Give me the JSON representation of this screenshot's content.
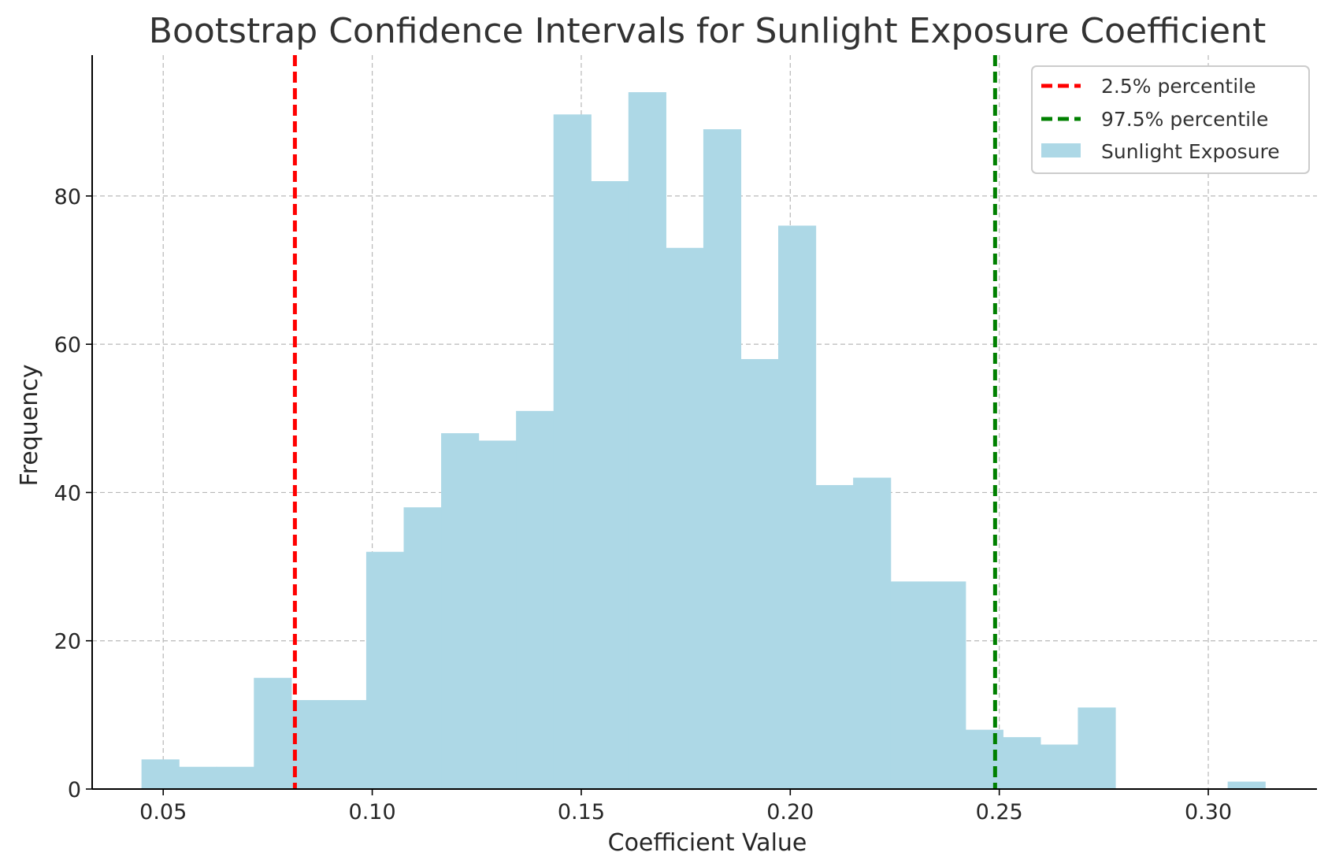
{
  "chart_data": {
    "type": "histogram",
    "title": "Bootstrap Confidence Intervals for Sunlight Exposure Coefficient",
    "xlabel": "Coefficient Value",
    "ylabel": "Frequency",
    "xlim": [
      0.033,
      0.326
    ],
    "ylim": [
      0,
      99
    ],
    "xticks": [
      0.05,
      0.1,
      0.15,
      0.2,
      0.25,
      0.3
    ],
    "xtick_labels": [
      "0.05",
      "0.10",
      "0.15",
      "0.20",
      "0.25",
      "0.30"
    ],
    "yticks": [
      0,
      20,
      40,
      60,
      80
    ],
    "ytick_labels": [
      "0",
      "20",
      "40",
      "60",
      "80"
    ],
    "grid": true,
    "legend_position": "top-right",
    "bins": {
      "start": 0.0448,
      "width": 0.00896,
      "counts": [
        4,
        3,
        3,
        15,
        12,
        12,
        32,
        38,
        48,
        47,
        51,
        91,
        82,
        94,
        73,
        89,
        58,
        76,
        41,
        42,
        28,
        28,
        8,
        7,
        6,
        11,
        0,
        0,
        0,
        1
      ]
    },
    "series": [
      {
        "name": "2.5% percentile",
        "type": "vline",
        "x": 0.0815,
        "color": "#ff0000",
        "style": "dashed"
      },
      {
        "name": "97.5% percentile",
        "type": "vline",
        "x": 0.249,
        "color": "#008000",
        "style": "dashed"
      },
      {
        "name": "Sunlight Exposure",
        "type": "hist",
        "color": "#add8e6"
      }
    ]
  }
}
